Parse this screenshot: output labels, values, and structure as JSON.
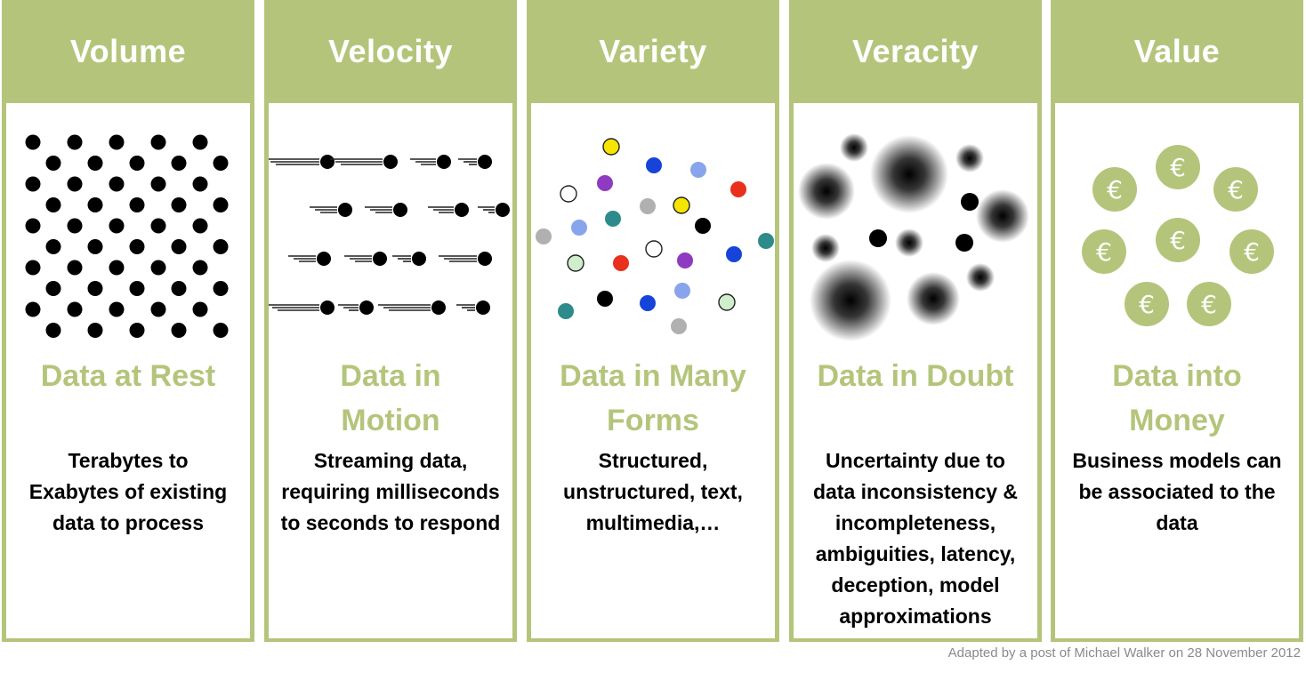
{
  "columns": [
    {
      "title": "Volume",
      "subtitle": "Data at Rest",
      "description": [
        "Terabytes to",
        "Exabytes of existing",
        "data to process"
      ]
    },
    {
      "title": "Velocity",
      "subtitle_lines": [
        "Data in",
        "Motion"
      ],
      "description": [
        "Streaming data,",
        "requiring milliseconds",
        "to seconds to respond"
      ]
    },
    {
      "title": "Variety",
      "subtitle_lines": [
        "Data in Many",
        "Forms"
      ],
      "description": [
        "Structured,",
        "unstructured, text,",
        "multimedia,…"
      ]
    },
    {
      "title": "Veracity",
      "subtitle": "Data in Doubt",
      "description": [
        "Uncertainty due to",
        "data inconsistency &",
        "incompleteness,",
        "ambiguities, latency,",
        "deception, model",
        "approximations"
      ]
    },
    {
      "title": "Value",
      "subtitle_lines": [
        "Data into",
        "Money"
      ],
      "description": [
        "Business models can",
        "be associated to the",
        "data"
      ]
    }
  ],
  "icons": {
    "volume": "dot-grid-icon",
    "velocity": "moving-dots-icon",
    "variety": "colored-dots-icon",
    "veracity": "blurred-dots-icon",
    "value": "euro-coins-icon"
  },
  "euro_symbol": "€",
  "colors": {
    "accent": "#b4c57b",
    "text": "#000000",
    "credit": "#8a8a8a"
  },
  "credit": "Adapted by a post of  Michael  Walker on 28 November 2012"
}
